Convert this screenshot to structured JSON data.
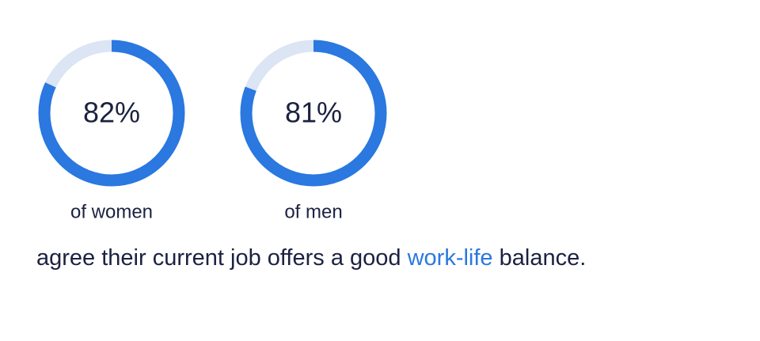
{
  "chart_data": [
    {
      "type": "donut",
      "values": [
        82
      ],
      "value_labels": [
        "82%"
      ],
      "caption": "of women",
      "color": "#2a78e0",
      "track_color": "#dbe5f3"
    },
    {
      "type": "donut",
      "values": [
        81
      ],
      "value_labels": [
        "81%"
      ],
      "caption": "of men",
      "color": "#2a78e0",
      "track_color": "#dbe5f3"
    }
  ],
  "sentence": {
    "before": "agree their current job offers a good",
    "highlight": "work-life",
    "after": "balance."
  }
}
